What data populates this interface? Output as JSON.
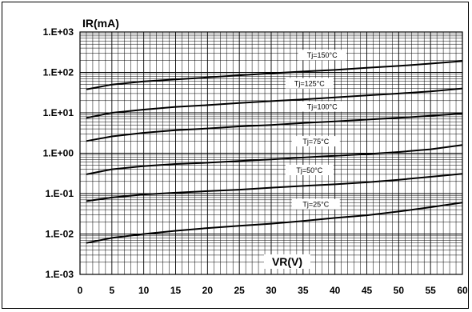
{
  "chart_data": {
    "type": "line",
    "title": "",
    "xlabel": "VR(V)",
    "ylabel": "IR(mA)",
    "xlim": [
      0,
      60
    ],
    "ylim": [
      0.001,
      1000
    ],
    "yscale": "log",
    "grid": true,
    "legend": "none",
    "x_ticks": [
      "0",
      "5",
      "10",
      "15",
      "20",
      "25",
      "30",
      "35",
      "40",
      "45",
      "50",
      "55",
      "60"
    ],
    "y_ticks": [
      "1.E-03",
      "1.E-02",
      "1.E-01",
      "1.E+00",
      "1.E+01",
      "1.E+02",
      "1.E+03"
    ],
    "x": [
      1,
      5,
      10,
      15,
      20,
      25,
      30,
      35,
      40,
      45,
      50,
      55,
      60
    ],
    "series": [
      {
        "name": "Tj=150°C",
        "values": [
          38,
          50,
          60,
          67,
          75,
          85,
          95,
          105,
          115,
          130,
          145,
          165,
          190
        ]
      },
      {
        "name": "Tj=125°C",
        "values": [
          7.5,
          10,
          12,
          14,
          15.5,
          17.5,
          19.5,
          21.5,
          24,
          27,
          30,
          34,
          40
        ]
      },
      {
        "name": "Tj=100°C",
        "values": [
          2.0,
          2.6,
          3.2,
          3.7,
          4.1,
          4.6,
          5.0,
          5.6,
          6.1,
          6.8,
          7.5,
          8.4,
          9.6
        ]
      },
      {
        "name": "Tj=75°C",
        "values": [
          0.3,
          0.4,
          0.48,
          0.54,
          0.58,
          0.64,
          0.7,
          0.78,
          0.86,
          0.95,
          1.07,
          1.25,
          1.6
        ]
      },
      {
        "name": "Tj=50°C",
        "values": [
          0.065,
          0.08,
          0.095,
          0.105,
          0.115,
          0.125,
          0.14,
          0.155,
          0.17,
          0.19,
          0.22,
          0.26,
          0.31
        ]
      },
      {
        "name": "Tj=25°C",
        "values": [
          0.006,
          0.008,
          0.01,
          0.012,
          0.014,
          0.016,
          0.018,
          0.021,
          0.025,
          0.029,
          0.036,
          0.046,
          0.06
        ]
      }
    ],
    "label_x": [
      38,
      36,
      38,
      37,
      36,
      37
    ],
    "line_color": "#000000",
    "grid_color": "#000000"
  }
}
